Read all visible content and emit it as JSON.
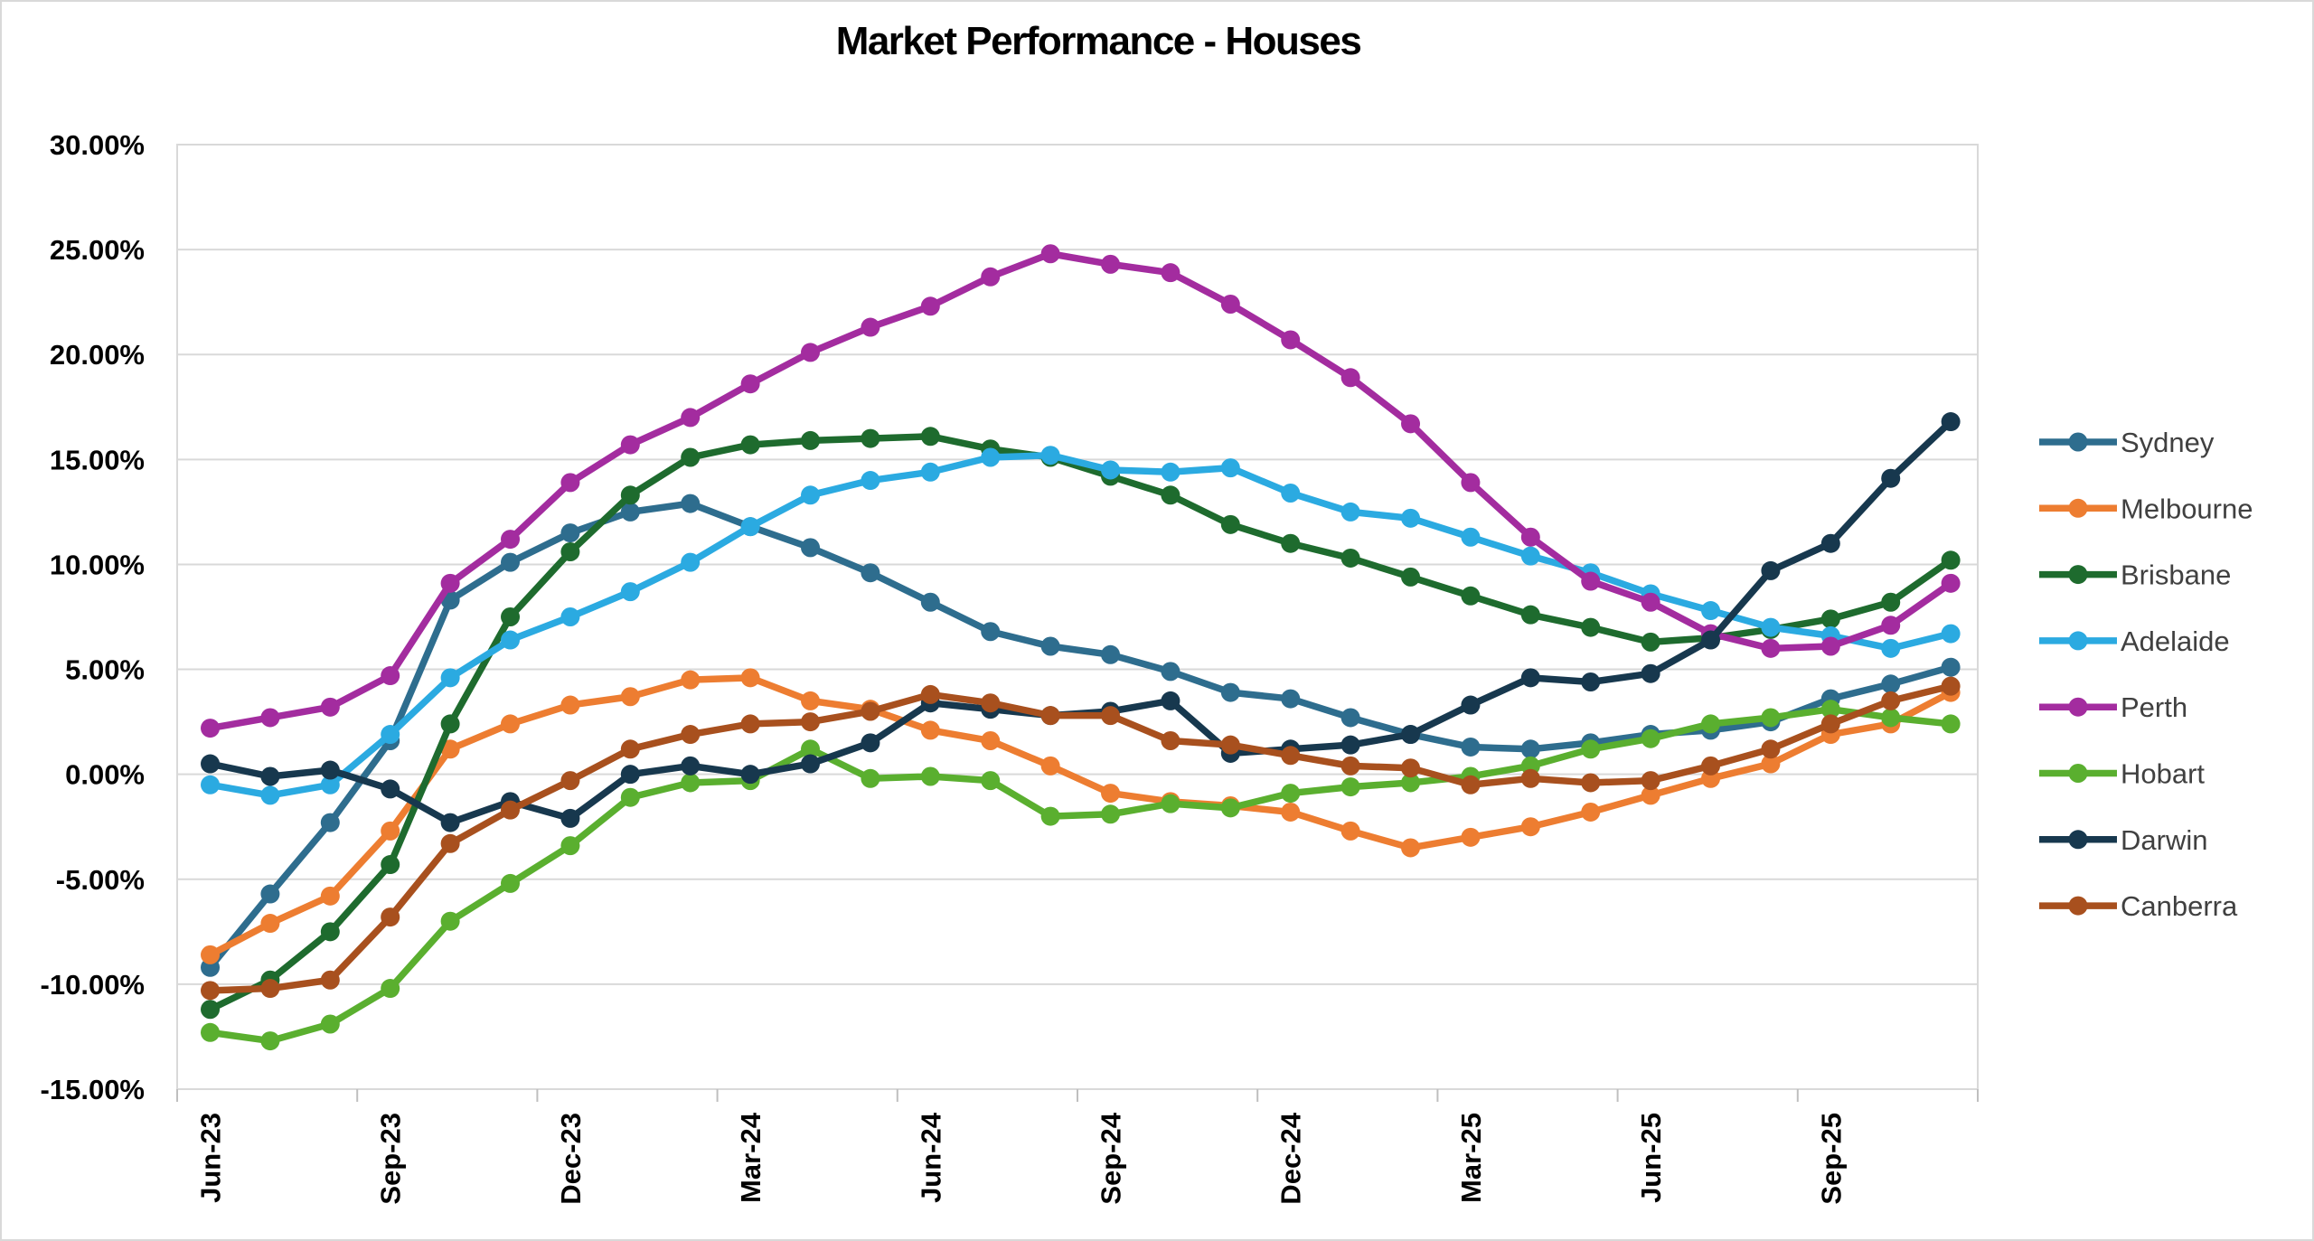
{
  "chart_data": {
    "type": "line",
    "title": "Market Performance - Houses",
    "subtitle": "",
    "xlabel": "",
    "ylabel": "",
    "ylim": [
      -15,
      30
    ],
    "y_tick_step": 5,
    "y_tick_labels": [
      "30.00%",
      "25.00%",
      "20.00%",
      "15.00%",
      "10.00%",
      "5.00%",
      "0.00%",
      "-5.00%",
      "-10.00%",
      "-15.00%"
    ],
    "grid": true,
    "legend_position": "right",
    "marker": "circle",
    "x": [
      "Jun-23",
      "Jul-23",
      "Aug-23",
      "Sep-23",
      "Oct-23",
      "Nov-23",
      "Dec-23",
      "Jan-24",
      "Feb-24",
      "Mar-24",
      "Apr-24",
      "May-24",
      "Jun-24",
      "Jul-24",
      "Aug-24",
      "Sep-24",
      "Oct-24",
      "Nov-24",
      "Dec-24",
      "Jan-25",
      "Feb-25",
      "Mar-25",
      "Apr-25",
      "May-25",
      "Jun-25",
      "Jul-25",
      "Aug-25",
      "Sep-25",
      "Oct-25",
      "Nov-25"
    ],
    "x_axis_labels_shown": [
      "Jun-23",
      "Sep-23",
      "Dec-23",
      "Mar-24",
      "Jun-24",
      "Sep-24",
      "Dec-24",
      "Mar-25",
      "Jun-25",
      "Sep-25"
    ],
    "colors": {
      "grid": "#d9d9d9",
      "axis_text": "#000000",
      "legend_text": "#404040"
    },
    "series": [
      {
        "name": "Sydney",
        "color": "#2E6D8E",
        "values": [
          -9.2,
          -5.7,
          -2.3,
          1.6,
          8.3,
          10.1,
          11.5,
          12.5,
          12.9,
          11.8,
          10.8,
          9.6,
          8.2,
          6.8,
          6.1,
          5.7,
          4.9,
          3.9,
          3.6,
          2.7,
          1.9,
          1.3,
          1.2,
          1.5,
          1.9,
          2.1,
          2.5,
          3.6,
          4.3,
          5.1
        ]
      },
      {
        "name": "Melbourne",
        "color": "#ED7D31",
        "values": [
          -8.6,
          -7.1,
          -5.8,
          -2.7,
          1.2,
          2.4,
          3.3,
          3.7,
          4.5,
          4.6,
          3.5,
          3.1,
          2.1,
          1.6,
          0.4,
          -0.9,
          -1.3,
          -1.5,
          -1.8,
          -2.7,
          -3.5,
          -3.0,
          -2.5,
          -1.8,
          -1.0,
          -0.2,
          0.5,
          1.9,
          2.4,
          3.9
        ]
      },
      {
        "name": "Brisbane",
        "color": "#1E6B2E",
        "values": [
          -11.2,
          -9.8,
          -7.5,
          -4.3,
          2.4,
          7.5,
          10.6,
          13.3,
          15.1,
          15.7,
          15.9,
          16.0,
          16.1,
          15.5,
          15.1,
          14.2,
          13.3,
          11.9,
          11.0,
          10.3,
          9.4,
          8.5,
          7.6,
          7.0,
          6.3,
          6.5,
          6.9,
          7.4,
          8.2,
          10.2
        ]
      },
      {
        "name": "Adelaide",
        "color": "#2BAAE1",
        "values": [
          -0.5,
          -1.0,
          -0.5,
          1.9,
          4.6,
          6.4,
          7.5,
          8.7,
          10.1,
          11.8,
          13.3,
          14.0,
          14.4,
          15.1,
          15.2,
          14.5,
          14.4,
          14.6,
          13.4,
          12.5,
          12.2,
          11.3,
          10.4,
          9.6,
          8.6,
          7.8,
          7.0,
          6.6,
          6.0,
          6.7
        ]
      },
      {
        "name": "Perth",
        "color": "#A32C9F",
        "values": [
          2.2,
          2.7,
          3.2,
          4.7,
          9.1,
          11.2,
          13.9,
          15.7,
          17.0,
          18.6,
          20.1,
          21.3,
          22.3,
          23.7,
          24.8,
          24.3,
          23.9,
          22.4,
          20.7,
          18.9,
          16.7,
          13.9,
          11.3,
          9.2,
          8.2,
          6.7,
          6.0,
          6.1,
          7.1,
          9.1
        ]
      },
      {
        "name": "Hobart",
        "color": "#5AAF2F",
        "values": [
          -12.3,
          -12.7,
          -11.9,
          -10.2,
          -7.0,
          -5.2,
          -3.4,
          -1.1,
          -0.4,
          -0.3,
          1.2,
          -0.2,
          -0.1,
          -0.3,
          -2.0,
          -1.9,
          -1.4,
          -1.6,
          -0.9,
          -0.6,
          -0.4,
          -0.1,
          0.4,
          1.2,
          1.7,
          2.4,
          2.7,
          3.1,
          2.7,
          2.4
        ]
      },
      {
        "name": "Darwin",
        "color": "#17384E",
        "values": [
          0.5,
          -0.1,
          0.2,
          -0.7,
          -2.3,
          -1.3,
          -2.1,
          0.0,
          0.4,
          0.0,
          0.5,
          1.5,
          3.4,
          3.1,
          2.8,
          3.0,
          3.5,
          1.0,
          1.2,
          1.4,
          1.9,
          3.3,
          4.6,
          4.4,
          4.8,
          6.4,
          9.7,
          11.0,
          14.1,
          16.8
        ]
      },
      {
        "name": "Canberra",
        "color": "#A8501E",
        "values": [
          -10.3,
          -10.2,
          -9.8,
          -6.8,
          -3.3,
          -1.7,
          -0.3,
          1.2,
          1.9,
          2.4,
          2.5,
          3.0,
          3.8,
          3.4,
          2.8,
          2.8,
          1.6,
          1.4,
          0.9,
          0.4,
          0.3,
          -0.5,
          -0.2,
          -0.4,
          -0.3,
          0.4,
          1.2,
          2.4,
          3.5,
          4.2
        ]
      }
    ]
  }
}
